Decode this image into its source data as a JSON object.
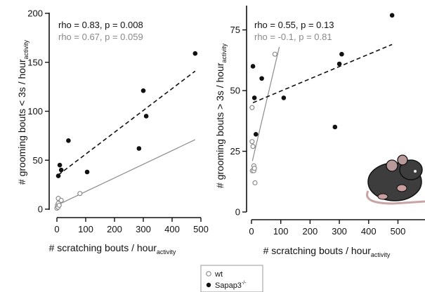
{
  "colors": {
    "black_series": "#111111",
    "grey_series": "#8c8c8c",
    "background": "#ffffff"
  },
  "legend": {
    "items": [
      {
        "label": "wt",
        "marker": "open-circle"
      },
      {
        "label": "Sapap3",
        "label_sup": "-/-",
        "marker": "filled-circle"
      }
    ],
    "placement": "bottom-center"
  },
  "mouse_icon": "mouse-illustration",
  "chart_data": [
    {
      "type": "scatter",
      "panel": "left",
      "xlabel": "# scratching bouts / hour",
      "xlabel_sub": "activity",
      "ylabel": "# grooming bouts < 3s / hour",
      "ylabel_sub": "activity",
      "xlim": [
        0,
        500
      ],
      "ylim": [
        0,
        200
      ],
      "x_ticks": [
        0,
        100,
        200,
        300,
        400,
        500
      ],
      "y_ticks": [
        0,
        50,
        100,
        150,
        200
      ],
      "grid": false,
      "annotations": [
        {
          "text": "rho = 0.83, p = 0.008",
          "series": "Sapap3"
        },
        {
          "text": "rho = 0.67, p = 0.059",
          "series": "wt"
        }
      ],
      "series": [
        {
          "name": "wt",
          "marker": "open-circle",
          "points": [
            [
              0,
              1
            ],
            [
              2,
              4
            ],
            [
              4,
              2
            ],
            [
              5,
              6
            ],
            [
              5,
              11
            ],
            [
              8,
              4
            ],
            [
              15,
              9
            ],
            [
              80,
              16
            ]
          ],
          "fit": {
            "style": "solid",
            "x0": 0,
            "y0": 4,
            "x1": 480,
            "y1": 71
          }
        },
        {
          "name": "Sapap3",
          "marker": "filled-circle",
          "points": [
            [
              5,
              34
            ],
            [
              10,
              45
            ],
            [
              15,
              40
            ],
            [
              40,
              70
            ],
            [
              105,
              38
            ],
            [
              285,
              62
            ],
            [
              300,
              121
            ],
            [
              310,
              95
            ],
            [
              480,
              159
            ]
          ],
          "fit": {
            "style": "dashed",
            "x0": 5,
            "y0": 35,
            "x1": 480,
            "y1": 141
          }
        }
      ]
    },
    {
      "type": "scatter",
      "panel": "right",
      "xlabel": "# scratching bouts / hour",
      "xlabel_sub": "activity",
      "ylabel": "# grooming bouts > 3s / hour",
      "ylabel_sub": "activity",
      "xlim": [
        0,
        590
      ],
      "ylim": [
        0,
        85
      ],
      "x_ticks": [
        0,
        100,
        200,
        300,
        400,
        500
      ],
      "y_ticks": [
        0,
        25,
        50,
        75
      ],
      "grid": false,
      "annotations": [
        {
          "text": "rho = 0.55, p = 0.13",
          "series": "Sapap3"
        },
        {
          "text": "rho = -0.1, p = 0.81",
          "series": "wt"
        }
      ],
      "series": [
        {
          "name": "wt",
          "marker": "open-circle",
          "points": [
            [
              2,
              43
            ],
            [
              2,
              29
            ],
            [
              3,
              17
            ],
            [
              5,
              27
            ],
            [
              8,
              19
            ],
            [
              8,
              17
            ],
            [
              10,
              18
            ],
            [
              12,
              12
            ],
            [
              80,
              65
            ]
          ],
          "fit": {
            "style": "solid",
            "x0": 3,
            "y0": 21,
            "x1": 95,
            "y1": 68
          }
        },
        {
          "name": "Sapap3",
          "marker": "filled-circle",
          "points": [
            [
              5,
              60
            ],
            [
              10,
              47
            ],
            [
              15,
              32
            ],
            [
              35,
              55
            ],
            [
              110,
              47
            ],
            [
              285,
              35
            ],
            [
              300,
              61
            ],
            [
              308,
              65
            ],
            [
              480,
              81
            ]
          ],
          "fit": {
            "style": "dashed",
            "x0": 5,
            "y0": 45,
            "x1": 480,
            "y1": 69
          }
        }
      ]
    }
  ]
}
